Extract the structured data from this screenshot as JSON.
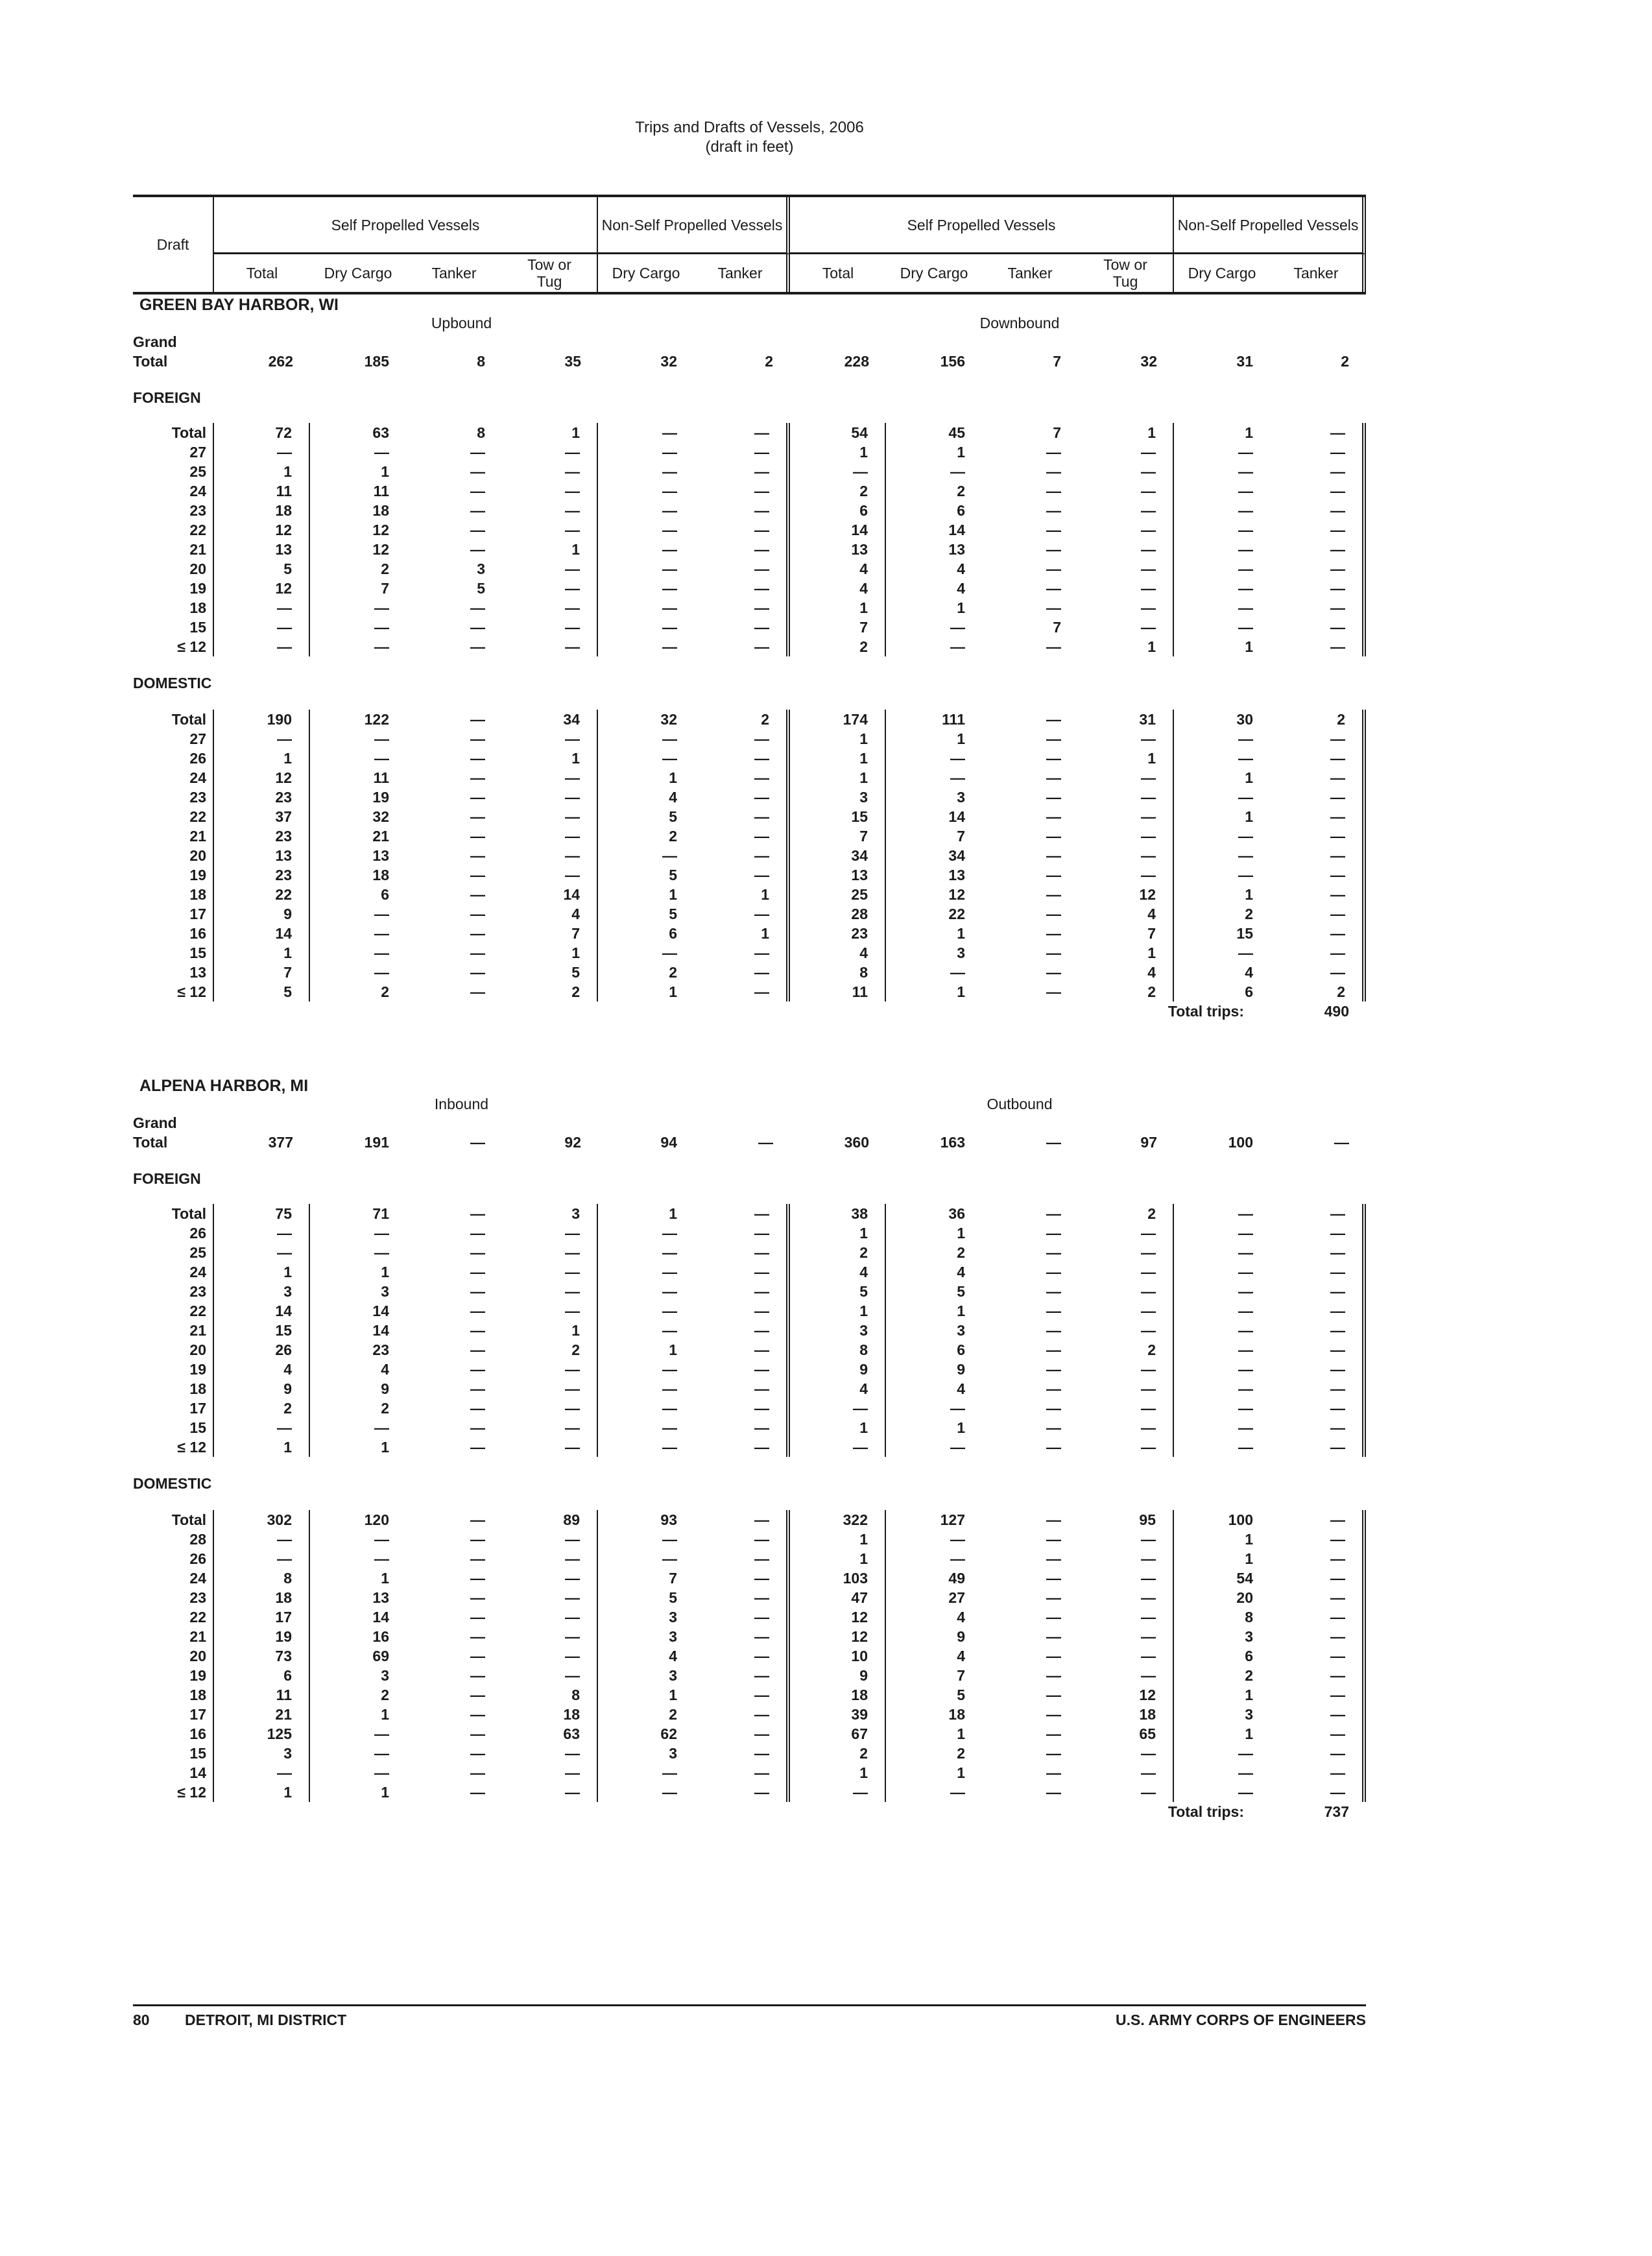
{
  "title": {
    "line1": "Trips and Drafts of Vessels, 2006",
    "line2": "(draft in feet)"
  },
  "header": {
    "draft": "Draft",
    "groups": {
      "sp": "Self Propelled Vessels",
      "nsp": "Non-Self Propelled Vessels"
    },
    "columns": {
      "total": "Total",
      "dry_cargo": "Dry Cargo",
      "tanker": "Tanker",
      "tow_or_tug": "Tow or Tug"
    }
  },
  "sections": [
    {
      "harbor": "GREEN BAY HARBOR, WI",
      "direction_left": "Upbound",
      "direction_right": "Downbound",
      "grand_label_top": "Grand",
      "grand_label_bottom": "Total",
      "grand_total": [
        "262",
        "185",
        "8",
        "35",
        "32",
        "2",
        "228",
        "156",
        "7",
        "32",
        "31",
        "2"
      ],
      "foreign": {
        "label": "FOREIGN",
        "rows": [
          {
            "draft": "Total",
            "values": [
              "72",
              "63",
              "8",
              "1",
              "—",
              "—",
              "54",
              "45",
              "7",
              "1",
              "1",
              "—"
            ]
          },
          {
            "draft": "27",
            "values": [
              "—",
              "—",
              "—",
              "—",
              "—",
              "—",
              "1",
              "1",
              "—",
              "—",
              "—",
              "—"
            ]
          },
          {
            "draft": "25",
            "values": [
              "1",
              "1",
              "—",
              "—",
              "—",
              "—",
              "—",
              "—",
              "—",
              "—",
              "—",
              "—"
            ]
          },
          {
            "draft": "24",
            "values": [
              "11",
              "11",
              "—",
              "—",
              "—",
              "—",
              "2",
              "2",
              "—",
              "—",
              "—",
              "—"
            ]
          },
          {
            "draft": "23",
            "values": [
              "18",
              "18",
              "—",
              "—",
              "—",
              "—",
              "6",
              "6",
              "—",
              "—",
              "—",
              "—"
            ]
          },
          {
            "draft": "22",
            "values": [
              "12",
              "12",
              "—",
              "—",
              "—",
              "—",
              "14",
              "14",
              "—",
              "—",
              "—",
              "—"
            ]
          },
          {
            "draft": "21",
            "values": [
              "13",
              "12",
              "—",
              "1",
              "—",
              "—",
              "13",
              "13",
              "—",
              "—",
              "—",
              "—"
            ]
          },
          {
            "draft": "20",
            "values": [
              "5",
              "2",
              "3",
              "—",
              "—",
              "—",
              "4",
              "4",
              "—",
              "—",
              "—",
              "—"
            ]
          },
          {
            "draft": "19",
            "values": [
              "12",
              "7",
              "5",
              "—",
              "—",
              "—",
              "4",
              "4",
              "—",
              "—",
              "—",
              "—"
            ]
          },
          {
            "draft": "18",
            "values": [
              "—",
              "—",
              "—",
              "—",
              "—",
              "—",
              "1",
              "1",
              "—",
              "—",
              "—",
              "—"
            ]
          },
          {
            "draft": "15",
            "values": [
              "—",
              "—",
              "—",
              "—",
              "—",
              "—",
              "7",
              "—",
              "7",
              "—",
              "—",
              "—"
            ]
          },
          {
            "draft": "≤ 12",
            "values": [
              "—",
              "—",
              "—",
              "—",
              "—",
              "—",
              "2",
              "—",
              "—",
              "1",
              "1",
              "—"
            ]
          }
        ]
      },
      "domestic": {
        "label": "DOMESTIC",
        "rows": [
          {
            "draft": "Total",
            "values": [
              "190",
              "122",
              "—",
              "34",
              "32",
              "2",
              "174",
              "111",
              "—",
              "31",
              "30",
              "2"
            ]
          },
          {
            "draft": "27",
            "values": [
              "—",
              "—",
              "—",
              "—",
              "—",
              "—",
              "1",
              "1",
              "—",
              "—",
              "—",
              "—"
            ]
          },
          {
            "draft": "26",
            "values": [
              "1",
              "—",
              "—",
              "1",
              "—",
              "—",
              "1",
              "—",
              "—",
              "1",
              "—",
              "—"
            ]
          },
          {
            "draft": "24",
            "values": [
              "12",
              "11",
              "—",
              "—",
              "1",
              "—",
              "1",
              "—",
              "—",
              "—",
              "1",
              "—"
            ]
          },
          {
            "draft": "23",
            "values": [
              "23",
              "19",
              "—",
              "—",
              "4",
              "—",
              "3",
              "3",
              "—",
              "—",
              "—",
              "—"
            ]
          },
          {
            "draft": "22",
            "values": [
              "37",
              "32",
              "—",
              "—",
              "5",
              "—",
              "15",
              "14",
              "—",
              "—",
              "1",
              "—"
            ]
          },
          {
            "draft": "21",
            "values": [
              "23",
              "21",
              "—",
              "—",
              "2",
              "—",
              "7",
              "7",
              "—",
              "—",
              "—",
              "—"
            ]
          },
          {
            "draft": "20",
            "values": [
              "13",
              "13",
              "—",
              "—",
              "—",
              "—",
              "34",
              "34",
              "—",
              "—",
              "—",
              "—"
            ]
          },
          {
            "draft": "19",
            "values": [
              "23",
              "18",
              "—",
              "—",
              "5",
              "—",
              "13",
              "13",
              "—",
              "—",
              "—",
              "—"
            ]
          },
          {
            "draft": "18",
            "values": [
              "22",
              "6",
              "—",
              "14",
              "1",
              "1",
              "25",
              "12",
              "—",
              "12",
              "1",
              "—"
            ]
          },
          {
            "draft": "17",
            "values": [
              "9",
              "—",
              "—",
              "4",
              "5",
              "—",
              "28",
              "22",
              "—",
              "4",
              "2",
              "—"
            ]
          },
          {
            "draft": "16",
            "values": [
              "14",
              "—",
              "—",
              "7",
              "6",
              "1",
              "23",
              "1",
              "—",
              "7",
              "15",
              "—"
            ]
          },
          {
            "draft": "15",
            "values": [
              "1",
              "—",
              "—",
              "1",
              "—",
              "—",
              "4",
              "3",
              "—",
              "1",
              "—",
              "—"
            ]
          },
          {
            "draft": "13",
            "values": [
              "7",
              "—",
              "—",
              "5",
              "2",
              "—",
              "8",
              "—",
              "—",
              "4",
              "4",
              "—"
            ]
          },
          {
            "draft": "≤ 12",
            "values": [
              "5",
              "2",
              "—",
              "2",
              "1",
              "—",
              "11",
              "1",
              "—",
              "2",
              "6",
              "2"
            ]
          }
        ]
      },
      "total_trips_label": "Total trips:",
      "total_trips_value": "490"
    },
    {
      "harbor": "ALPENA HARBOR, MI",
      "direction_left": "Inbound",
      "direction_right": "Outbound",
      "grand_label_top": "Grand",
      "grand_label_bottom": "Total",
      "grand_total": [
        "377",
        "191",
        "—",
        "92",
        "94",
        "—",
        "360",
        "163",
        "—",
        "97",
        "100",
        "—"
      ],
      "foreign": {
        "label": "FOREIGN",
        "rows": [
          {
            "draft": "Total",
            "values": [
              "75",
              "71",
              "—",
              "3",
              "1",
              "—",
              "38",
              "36",
              "—",
              "2",
              "—",
              "—"
            ]
          },
          {
            "draft": "26",
            "values": [
              "—",
              "—",
              "—",
              "—",
              "—",
              "—",
              "1",
              "1",
              "—",
              "—",
              "—",
              "—"
            ]
          },
          {
            "draft": "25",
            "values": [
              "—",
              "—",
              "—",
              "—",
              "—",
              "—",
              "2",
              "2",
              "—",
              "—",
              "—",
              "—"
            ]
          },
          {
            "draft": "24",
            "values": [
              "1",
              "1",
              "—",
              "—",
              "—",
              "—",
              "4",
              "4",
              "—",
              "—",
              "—",
              "—"
            ]
          },
          {
            "draft": "23",
            "values": [
              "3",
              "3",
              "—",
              "—",
              "—",
              "—",
              "5",
              "5",
              "—",
              "—",
              "—",
              "—"
            ]
          },
          {
            "draft": "22",
            "values": [
              "14",
              "14",
              "—",
              "—",
              "—",
              "—",
              "1",
              "1",
              "—",
              "—",
              "—",
              "—"
            ]
          },
          {
            "draft": "21",
            "values": [
              "15",
              "14",
              "—",
              "1",
              "—",
              "—",
              "3",
              "3",
              "—",
              "—",
              "—",
              "—"
            ]
          },
          {
            "draft": "20",
            "values": [
              "26",
              "23",
              "—",
              "2",
              "1",
              "—",
              "8",
              "6",
              "—",
              "2",
              "—",
              "—"
            ]
          },
          {
            "draft": "19",
            "values": [
              "4",
              "4",
              "—",
              "—",
              "—",
              "—",
              "9",
              "9",
              "—",
              "—",
              "—",
              "—"
            ]
          },
          {
            "draft": "18",
            "values": [
              "9",
              "9",
              "—",
              "—",
              "—",
              "—",
              "4",
              "4",
              "—",
              "—",
              "—",
              "—"
            ]
          },
          {
            "draft": "17",
            "values": [
              "2",
              "2",
              "—",
              "—",
              "—",
              "—",
              "—",
              "—",
              "—",
              "—",
              "—",
              "—"
            ]
          },
          {
            "draft": "15",
            "values": [
              "—",
              "—",
              "—",
              "—",
              "—",
              "—",
              "1",
              "1",
              "—",
              "—",
              "—",
              "—"
            ]
          },
          {
            "draft": "≤ 12",
            "values": [
              "1",
              "1",
              "—",
              "—",
              "—",
              "—",
              "—",
              "—",
              "—",
              "—",
              "—",
              "—"
            ]
          }
        ]
      },
      "domestic": {
        "label": "DOMESTIC",
        "rows": [
          {
            "draft": "Total",
            "values": [
              "302",
              "120",
              "—",
              "89",
              "93",
              "—",
              "322",
              "127",
              "—",
              "95",
              "100",
              "—"
            ]
          },
          {
            "draft": "28",
            "values": [
              "—",
              "—",
              "—",
              "—",
              "—",
              "—",
              "1",
              "—",
              "—",
              "—",
              "1",
              "—"
            ]
          },
          {
            "draft": "26",
            "values": [
              "—",
              "—",
              "—",
              "—",
              "—",
              "—",
              "1",
              "—",
              "—",
              "—",
              "1",
              "—"
            ]
          },
          {
            "draft": "24",
            "values": [
              "8",
              "1",
              "—",
              "—",
              "7",
              "—",
              "103",
              "49",
              "—",
              "—",
              "54",
              "—"
            ]
          },
          {
            "draft": "23",
            "values": [
              "18",
              "13",
              "—",
              "—",
              "5",
              "—",
              "47",
              "27",
              "—",
              "—",
              "20",
              "—"
            ]
          },
          {
            "draft": "22",
            "values": [
              "17",
              "14",
              "—",
              "—",
              "3",
              "—",
              "12",
              "4",
              "—",
              "—",
              "8",
              "—"
            ]
          },
          {
            "draft": "21",
            "values": [
              "19",
              "16",
              "—",
              "—",
              "3",
              "—",
              "12",
              "9",
              "—",
              "—",
              "3",
              "—"
            ]
          },
          {
            "draft": "20",
            "values": [
              "73",
              "69",
              "—",
              "—",
              "4",
              "—",
              "10",
              "4",
              "—",
              "—",
              "6",
              "—"
            ]
          },
          {
            "draft": "19",
            "values": [
              "6",
              "3",
              "—",
              "—",
              "3",
              "—",
              "9",
              "7",
              "—",
              "—",
              "2",
              "—"
            ]
          },
          {
            "draft": "18",
            "values": [
              "11",
              "2",
              "—",
              "8",
              "1",
              "—",
              "18",
              "5",
              "—",
              "12",
              "1",
              "—"
            ]
          },
          {
            "draft": "17",
            "values": [
              "21",
              "1",
              "—",
              "18",
              "2",
              "—",
              "39",
              "18",
              "—",
              "18",
              "3",
              "—"
            ]
          },
          {
            "draft": "16",
            "values": [
              "125",
              "—",
              "—",
              "63",
              "62",
              "—",
              "67",
              "1",
              "—",
              "65",
              "1",
              "—"
            ]
          },
          {
            "draft": "15",
            "values": [
              "3",
              "—",
              "—",
              "—",
              "3",
              "—",
              "2",
              "2",
              "—",
              "—",
              "—",
              "—"
            ]
          },
          {
            "draft": "14",
            "values": [
              "—",
              "—",
              "—",
              "—",
              "—",
              "—",
              "1",
              "1",
              "—",
              "—",
              "—",
              "—"
            ]
          },
          {
            "draft": "≤ 12",
            "values": [
              "1",
              "1",
              "—",
              "—",
              "—",
              "—",
              "—",
              "—",
              "—",
              "—",
              "—",
              "—"
            ]
          }
        ]
      },
      "total_trips_label": "Total trips:",
      "total_trips_value": "737"
    }
  ],
  "footer": {
    "page_number": "80",
    "left": "DETROIT, MI DISTRICT",
    "right": "U.S. ARMY CORPS OF ENGINEERS"
  }
}
